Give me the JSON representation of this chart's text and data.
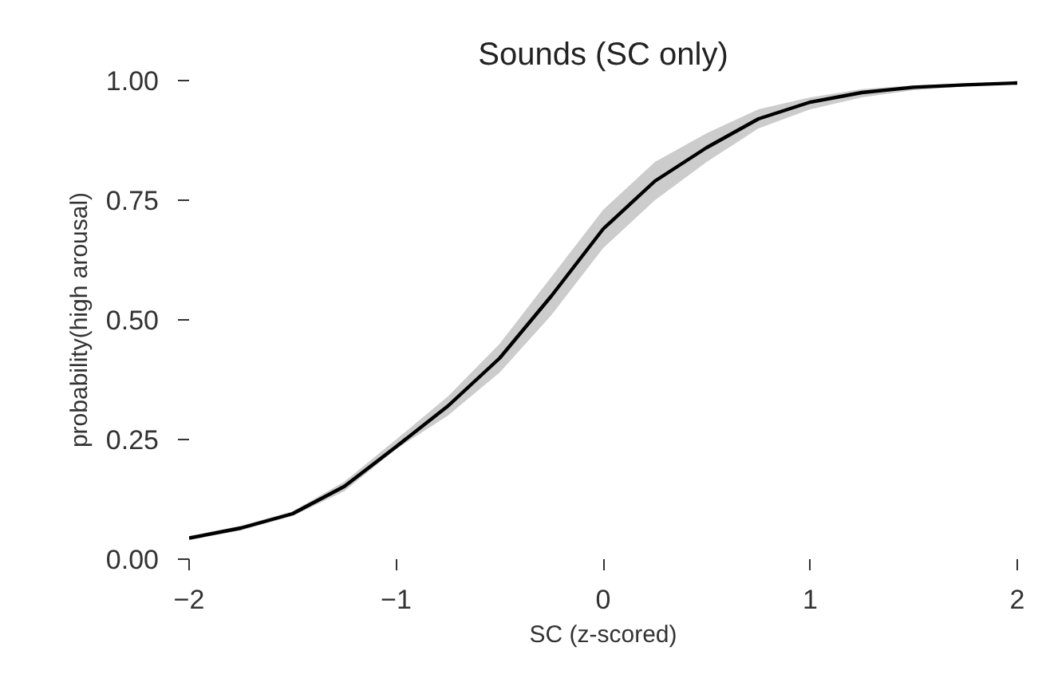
{
  "chart_data": {
    "type": "line",
    "title": "Sounds (SC only)",
    "xlabel": "SC (z-scored)",
    "ylabel": "probability(high arousal)",
    "x": [
      -2,
      -1.75,
      -1.5,
      -1.25,
      -1,
      -0.75,
      -0.5,
      -0.25,
      0,
      0.25,
      0.5,
      0.75,
      1,
      1.25,
      1.5,
      1.75,
      2
    ],
    "series": [
      {
        "color": "#000000",
        "values": [
          0.044,
          0.065,
          0.095,
          0.152,
          0.235,
          0.32,
          0.42,
          0.55,
          0.69,
          0.79,
          0.86,
          0.92,
          0.955,
          0.975,
          0.986,
          0.991,
          0.995
        ],
        "lower": [
          0.04,
          0.06,
          0.09,
          0.142,
          0.23,
          0.3,
          0.39,
          0.51,
          0.65,
          0.75,
          0.83,
          0.9,
          0.94,
          0.965,
          0.98,
          0.988,
          0.993
        ],
        "upper": [
          0.048,
          0.07,
          0.1,
          0.162,
          0.25,
          0.34,
          0.45,
          0.59,
          0.73,
          0.83,
          0.89,
          0.94,
          0.965,
          0.982,
          0.99,
          0.994,
          0.997
        ]
      }
    ],
    "xlim": [
      -2,
      2
    ],
    "ylim": [
      0,
      1
    ],
    "xticks": [
      {
        "value": -2,
        "label": "−2"
      },
      {
        "value": -1,
        "label": "−1"
      },
      0,
      1,
      2
    ],
    "yticks": [
      {
        "value": 0,
        "label": "0.00"
      },
      {
        "value": 0.25,
        "label": "0.25"
      },
      {
        "value": 0.5,
        "label": "0.50"
      },
      {
        "value": 0.75,
        "label": "0.75"
      },
      {
        "value": 1,
        "label": "1.00"
      }
    ]
  }
}
